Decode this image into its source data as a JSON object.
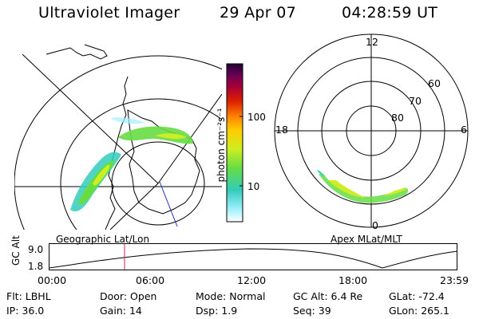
{
  "header": {
    "instrument": "Ultraviolet Imager",
    "date": "29 Apr 07",
    "time": "04:28:59 UT"
  },
  "geo_panel": {
    "label": "Geographic Lat/Lon"
  },
  "apex_panel": {
    "label": "Apex MLat/MLT",
    "mlt_labels": {
      "top": "12",
      "left": "18",
      "right": "6",
      "bottom": "0"
    },
    "lat_labels": [
      "60",
      "70",
      "80"
    ]
  },
  "colorbar": {
    "unit_label": "photon cm⁻²s⁻¹",
    "ticks": [
      "100",
      "10"
    ],
    "scale": "log",
    "colors": [
      "#ffffff",
      "#9ff0ff",
      "#33ccbb",
      "#66dd44",
      "#ccee22",
      "#ffcc00",
      "#ff8800",
      "#dd2200",
      "#aa0033",
      "#660055",
      "#220033"
    ]
  },
  "altitude_plot": {
    "ylabel": "GC Alt",
    "yticks": [
      "9.0",
      "1.8"
    ],
    "xticks": [
      "00:00",
      "06:00",
      "12:00",
      "18:00",
      "23:59"
    ],
    "current_time_marker": "04:28:59"
  },
  "status": {
    "row1": [
      {
        "key": "Flt:",
        "value": "LBHL"
      },
      {
        "key": "Door:",
        "value": "Open"
      },
      {
        "key": "Mode:",
        "value": "Normal"
      },
      {
        "key": "GC Alt:",
        "value": "6.4 Re"
      },
      {
        "key": "GLat:",
        "value": "-72.4"
      }
    ],
    "row2": [
      {
        "key": "IP:",
        "value": "36.0"
      },
      {
        "key": "Gain:",
        "value": "14"
      },
      {
        "key": "Dsp:",
        "value": "1.9"
      },
      {
        "key": "Seq:",
        "value": "39"
      },
      {
        "key": "GLon:",
        "value": "265.1"
      }
    ]
  }
}
